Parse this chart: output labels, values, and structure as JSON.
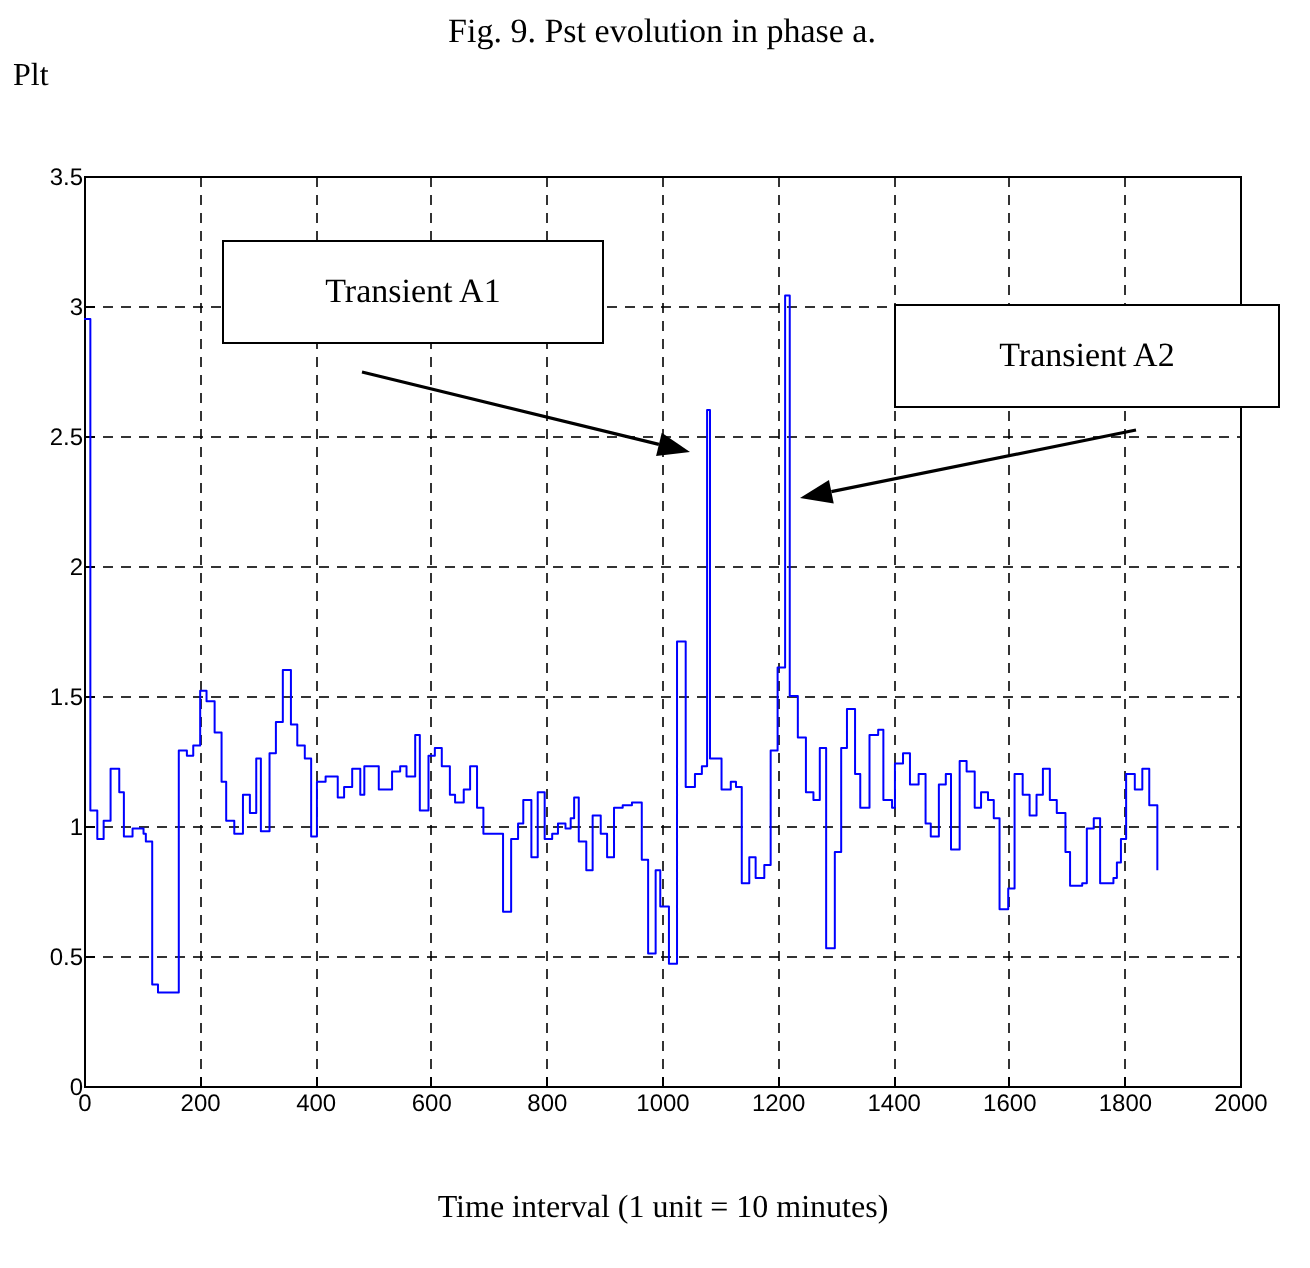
{
  "chart_data": {
    "type": "step",
    "title": "Fig. 9. Pst evolution in phase a.",
    "ylabel": "Plt",
    "xlabel": "Time interval (1 unit = 10 minutes)",
    "x": [
      0,
      11,
      23,
      34,
      46,
      61,
      69,
      84,
      103,
      107,
      118,
      128,
      164,
      178,
      189,
      201,
      212,
      226,
      238,
      246,
      260,
      275,
      287,
      298,
      306,
      321,
      332,
      344,
      358,
      369,
      382,
      393,
      403,
      418,
      439,
      450,
      464,
      478,
      485,
      510,
      533,
      547,
      558,
      573,
      581,
      596,
      607,
      619,
      633,
      642,
      657,
      668,
      680,
      691,
      725,
      739,
      751,
      760,
      774,
      785,
      797,
      810,
      820,
      833,
      842,
      848,
      856,
      869,
      880,
      894,
      905,
      917,
      932,
      948,
      965,
      976,
      989,
      997,
      1012,
      1026,
      1041,
      1057,
      1069,
      1078,
      1083,
      1103,
      1119,
      1128,
      1138,
      1151,
      1162,
      1177,
      1188,
      1200,
      1213,
      1221,
      1235,
      1249,
      1262,
      1273,
      1284,
      1299,
      1310,
      1320,
      1334,
      1343,
      1359,
      1374,
      1383,
      1398,
      1403,
      1417,
      1429,
      1444,
      1456,
      1465,
      1479,
      1491,
      1500,
      1515,
      1527,
      1541,
      1552,
      1564,
      1574,
      1584,
      1599,
      1610,
      1624,
      1636,
      1648,
      1659,
      1671,
      1683,
      1698,
      1706,
      1727,
      1735,
      1747,
      1758,
      1781,
      1787,
      1794,
      1803,
      1818,
      1831,
      1843,
      1857
    ],
    "series": [
      {
        "color": "#0000ff",
        "values": [
          2.95,
          1.06,
          0.95,
          1.02,
          1.22,
          1.13,
          0.96,
          0.99,
          0.97,
          0.94,
          0.39,
          0.36,
          1.29,
          1.27,
          1.31,
          1.52,
          1.48,
          1.36,
          1.17,
          1.02,
          0.97,
          1.12,
          1.05,
          1.26,
          0.98,
          1.28,
          1.4,
          1.6,
          1.39,
          1.31,
          1.26,
          0.96,
          1.17,
          1.19,
          1.11,
          1.15,
          1.22,
          1.12,
          1.23,
          1.14,
          1.21,
          1.23,
          1.19,
          1.35,
          1.06,
          1.27,
          1.3,
          1.23,
          1.12,
          1.09,
          1.14,
          1.23,
          1.07,
          0.97,
          0.67,
          0.95,
          1.01,
          1.1,
          0.88,
          1.13,
          0.95,
          0.97,
          1.01,
          0.99,
          1.03,
          1.11,
          0.94,
          0.83,
          1.04,
          0.97,
          0.88,
          1.07,
          1.08,
          1.09,
          0.87,
          0.51,
          0.83,
          0.69,
          0.47,
          1.71,
          1.15,
          1.2,
          1.23,
          2.6,
          1.26,
          1.14,
          1.17,
          1.15,
          0.78,
          0.88,
          0.8,
          0.85,
          1.29,
          1.61,
          3.04,
          1.5,
          1.34,
          1.13,
          1.1,
          1.3,
          0.53,
          0.9,
          1.3,
          1.45,
          1.2,
          1.07,
          1.35,
          1.37,
          1.1,
          1.07,
          1.24,
          1.28,
          1.16,
          1.2,
          1.01,
          0.96,
          1.16,
          1.2,
          0.91,
          1.25,
          1.21,
          1.07,
          1.13,
          1.1,
          1.03,
          0.68,
          0.76,
          1.2,
          1.12,
          1.04,
          1.12,
          1.22,
          1.1,
          1.05,
          0.9,
          0.77,
          0.78,
          0.99,
          1.03,
          0.78,
          0.8,
          0.86,
          0.95,
          1.2,
          1.14,
          1.22,
          1.08,
          0.83
        ]
      }
    ],
    "xlim": [
      0,
      2000
    ],
    "ylim": [
      0,
      3.5
    ],
    "xticks": [
      0,
      200,
      400,
      600,
      800,
      1000,
      1200,
      1400,
      1600,
      1800,
      2000
    ],
    "yticks": [
      0,
      0.5,
      1,
      1.5,
      2,
      2.5,
      3,
      3.5
    ],
    "grid": true,
    "annotations": [
      "Transient A1",
      "Transient A2"
    ]
  }
}
